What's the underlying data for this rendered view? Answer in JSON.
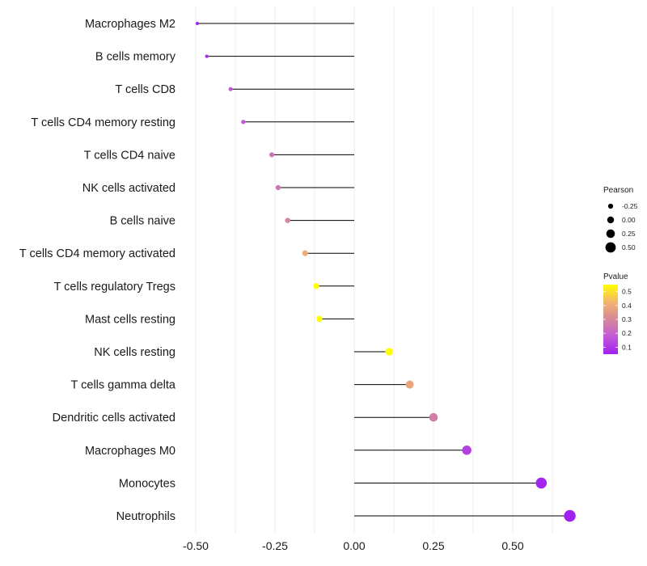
{
  "chart_data": {
    "type": "lollipop",
    "categories": [
      "Macrophages M2",
      "B cells memory",
      "T cells CD8",
      "T cells CD4 memory resting",
      "T cells CD4 naive",
      "NK cells activated",
      "B cells naive",
      "T cells CD4 memory activated",
      "T cells regulatory  Tregs",
      "Mast cells resting",
      "NK cells resting",
      "T cells gamma delta",
      "Dendritic cells activated",
      "Macrophages M0",
      "Monocytes",
      "Neutrophils"
    ],
    "pearson": [
      -0.495,
      -0.465,
      -0.39,
      -0.35,
      -0.26,
      -0.24,
      -0.21,
      -0.155,
      -0.12,
      -0.11,
      0.11,
      0.175,
      0.25,
      0.355,
      0.59,
      0.68
    ],
    "pvalue": [
      0.05,
      0.08,
      0.16,
      0.18,
      0.24,
      0.26,
      0.3,
      0.4,
      0.55,
      0.56,
      0.56,
      0.38,
      0.27,
      0.12,
      0.06,
      0.05
    ],
    "x_ticks": [
      -0.5,
      -0.25,
      0.0,
      0.25,
      0.5
    ],
    "x_tick_labels": [
      "-0.50",
      "-0.25",
      "0.00",
      "0.25",
      "0.50"
    ],
    "xlim": [
      -0.55,
      0.72
    ],
    "xlabel": "",
    "ylabel": "",
    "size_legend": {
      "title": "Pearson",
      "values": [
        -0.25,
        0.0,
        0.25,
        0.5
      ],
      "labels": [
        "-0.25",
        "0.00",
        "0.25",
        "0.50"
      ]
    },
    "color_legend": {
      "title": "Pvalue",
      "ticks": [
        0.5,
        0.4,
        0.3,
        0.2,
        0.1
      ],
      "labels": [
        "0.5",
        "0.4",
        "0.3",
        "0.2",
        "0.1"
      ],
      "range": [
        0.05,
        0.55
      ],
      "low_color": "#a020f0",
      "high_color": "#ffff00"
    },
    "grid": true,
    "legend_position": "right"
  },
  "colors": {
    "stem": "#000000",
    "grid": "#ebebeb",
    "background": "#ffffff"
  }
}
